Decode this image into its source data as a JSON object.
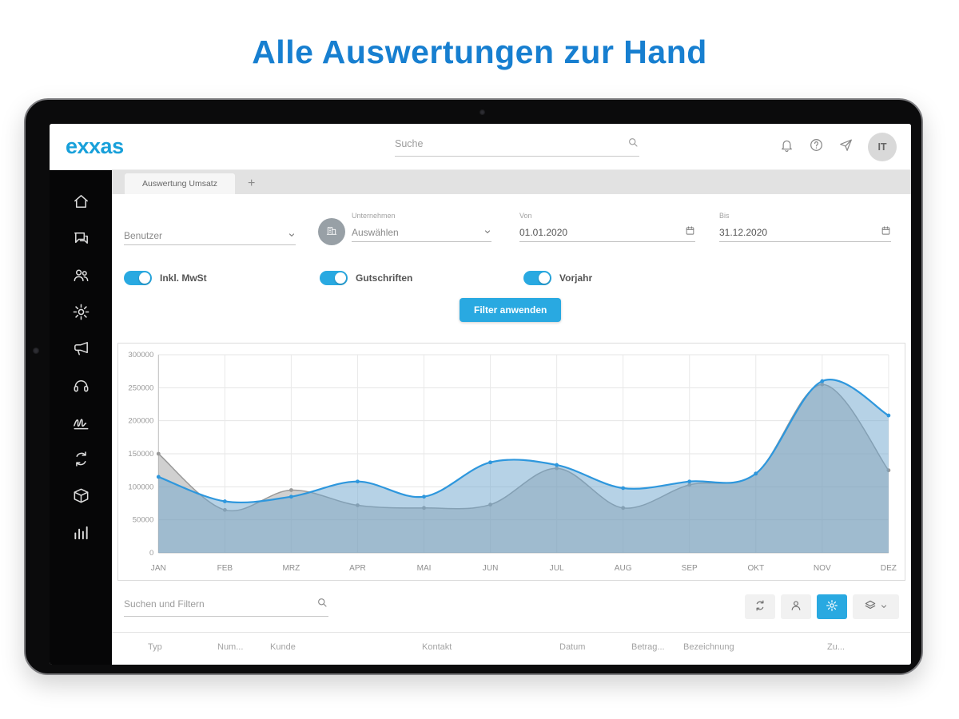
{
  "page": {
    "headline": "Alle Auswertungen zur Hand"
  },
  "colors": {
    "headline": "#177fd0",
    "brand": "#18a0da",
    "accent": "#29a9e1",
    "chart_blue": "#2e97dd",
    "chart_gray": "#9a9a9a"
  },
  "topbar": {
    "logo": "exxas",
    "search_placeholder": "Suche",
    "avatar_initials": "IT",
    "icons": [
      "bell-icon",
      "help-icon",
      "announcement-icon"
    ]
  },
  "tabs": {
    "active_label": "Auswertung Umsatz",
    "add_label": "+"
  },
  "sidebar": {
    "icons": [
      "home",
      "chat",
      "contacts",
      "settings",
      "marketing",
      "support",
      "signature",
      "sync",
      "products",
      "reports"
    ]
  },
  "filters": {
    "benutzer_placeholder": "Benutzer",
    "unternehmen_label": "Unternehmen",
    "unternehmen_placeholder": "Auswählen",
    "von_label": "Von",
    "von_value": "01.01.2020",
    "bis_label": "Bis",
    "bis_value": "31.12.2020",
    "toggles": [
      {
        "label": "Inkl. MwSt",
        "on": true
      },
      {
        "label": "Gutschriften",
        "on": true
      },
      {
        "label": "Vorjahr",
        "on": true
      }
    ],
    "apply_label": "Filter anwenden"
  },
  "chart_data": {
    "type": "area",
    "x": [
      "JAN",
      "FEB",
      "MRZ",
      "APR",
      "MAI",
      "JUN",
      "JUL",
      "AUG",
      "SEP",
      "OKT",
      "NOV",
      "DEZ"
    ],
    "ylim": [
      0,
      300000
    ],
    "yticks": [
      0,
      50000,
      100000,
      150000,
      200000,
      250000,
      300000
    ],
    "grid": true,
    "legend": false,
    "series": [
      {
        "name": "Vorjahr",
        "color": "#9a9a9a",
        "fill": "rgba(150,150,150,0.45)",
        "width": 1.5,
        "values": [
          150000,
          65000,
          95000,
          72000,
          68000,
          73000,
          128000,
          68000,
          103000,
          120000,
          255000,
          125000
        ]
      },
      {
        "name": "Umsatz",
        "color": "#2e97dd",
        "fill": "rgba(110,165,205,0.5)",
        "width": 2.2,
        "values": [
          115000,
          78000,
          85000,
          108000,
          85000,
          137000,
          133000,
          98000,
          108000,
          120000,
          260000,
          208000
        ]
      }
    ]
  },
  "list_toolbar": {
    "search_placeholder": "Suchen und Filtern",
    "buttons": [
      "refresh",
      "user",
      "settings",
      "layers"
    ]
  },
  "table": {
    "headers": [
      "Typ",
      "Num...",
      "Kunde",
      "Kontakt",
      "Datum",
      "Betrag...",
      "Bezeichnung",
      "Zu..."
    ]
  }
}
